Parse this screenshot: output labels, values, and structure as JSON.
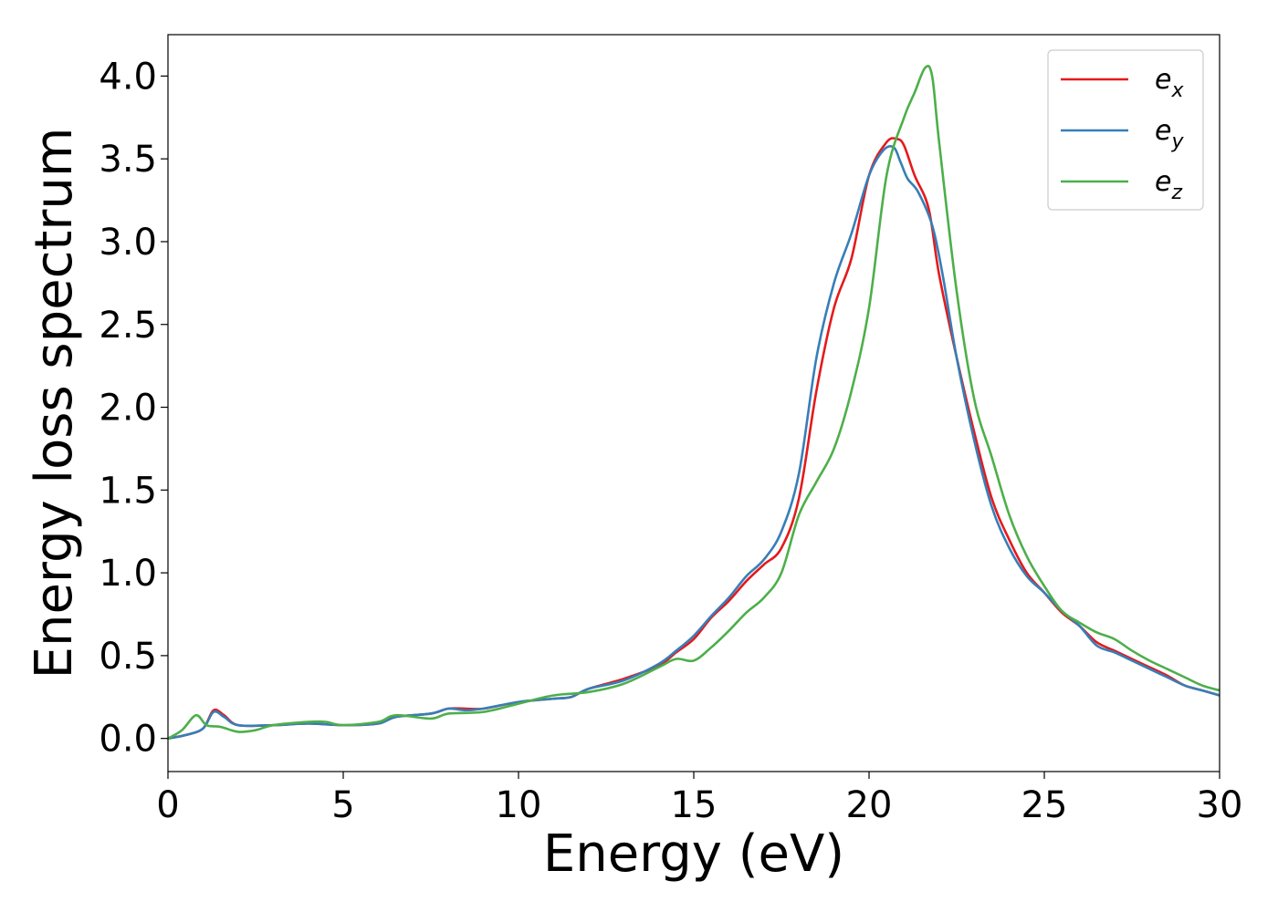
{
  "chart_data": {
    "type": "line",
    "title": "",
    "xlabel": "Energy (eV)",
    "ylabel": "Energy loss spectrum",
    "xlim": [
      0,
      30
    ],
    "ylim": [
      -0.2,
      4.25
    ],
    "xticks": [
      0,
      5,
      10,
      15,
      20,
      25,
      30
    ],
    "yticks": [
      0.0,
      0.5,
      1.0,
      1.5,
      2.0,
      2.5,
      3.0,
      3.5,
      4.0
    ],
    "xtick_labels": [
      "0",
      "5",
      "10",
      "15",
      "20",
      "25",
      "30"
    ],
    "ytick_labels": [
      "0.0",
      "0.5",
      "1.0",
      "1.5",
      "2.0",
      "2.5",
      "3.0",
      "3.5",
      "4.0"
    ],
    "grid": false,
    "legend_position": "top-right",
    "series": [
      {
        "name": "e",
        "subscript": "x",
        "color": "#e41a1c",
        "x": [
          0,
          0.5,
          1.0,
          1.3,
          1.6,
          2.0,
          3,
          4,
          5,
          6,
          6.5,
          7.5,
          8,
          8.5,
          9,
          10,
          11,
          11.5,
          12,
          13,
          14,
          14.5,
          15,
          15.5,
          16,
          16.5,
          17,
          17.5,
          18,
          18.5,
          19,
          19.5,
          20,
          20.5,
          20.8,
          21,
          21.3,
          21.7,
          22,
          22.5,
          23,
          23.5,
          24,
          24.5,
          25,
          25.5,
          26,
          26.5,
          27,
          27.5,
          28,
          28.5,
          29,
          29.5,
          30
        ],
        "y": [
          0.0,
          0.02,
          0.06,
          0.17,
          0.14,
          0.08,
          0.08,
          0.09,
          0.08,
          0.09,
          0.13,
          0.15,
          0.18,
          0.18,
          0.18,
          0.22,
          0.24,
          0.25,
          0.3,
          0.36,
          0.44,
          0.52,
          0.6,
          0.73,
          0.83,
          0.95,
          1.05,
          1.15,
          1.45,
          2.1,
          2.6,
          2.9,
          3.4,
          3.6,
          3.62,
          3.58,
          3.4,
          3.2,
          2.8,
          2.3,
          1.85,
          1.45,
          1.2,
          1.0,
          0.88,
          0.76,
          0.68,
          0.58,
          0.53,
          0.48,
          0.43,
          0.38,
          0.32,
          0.29,
          0.26
        ]
      },
      {
        "name": "e",
        "subscript": "y",
        "color": "#377eb8",
        "x": [
          0,
          0.5,
          1.0,
          1.3,
          1.6,
          2.0,
          3,
          4,
          5,
          6,
          6.5,
          7.5,
          8,
          8.5,
          9,
          10,
          11,
          11.5,
          12,
          13,
          14,
          14.5,
          15,
          15.5,
          16,
          16.5,
          17,
          17.5,
          18,
          18.5,
          19,
          19.5,
          20,
          20.4,
          20.7,
          20.9,
          21.1,
          21.4,
          21.8,
          22.1,
          22.5,
          23,
          23.5,
          24,
          24.5,
          25,
          25.5,
          26,
          26.5,
          27,
          27.5,
          28,
          28.5,
          29,
          29.5,
          30
        ],
        "y": [
          0.0,
          0.02,
          0.06,
          0.16,
          0.13,
          0.08,
          0.08,
          0.09,
          0.08,
          0.09,
          0.13,
          0.15,
          0.18,
          0.17,
          0.18,
          0.22,
          0.24,
          0.25,
          0.3,
          0.35,
          0.45,
          0.53,
          0.62,
          0.74,
          0.85,
          0.98,
          1.08,
          1.25,
          1.6,
          2.3,
          2.75,
          3.05,
          3.4,
          3.55,
          3.57,
          3.48,
          3.38,
          3.3,
          3.1,
          2.8,
          2.3,
          1.8,
          1.4,
          1.15,
          0.98,
          0.88,
          0.77,
          0.68,
          0.56,
          0.52,
          0.47,
          0.42,
          0.37,
          0.32,
          0.29,
          0.26
        ]
      },
      {
        "name": "e",
        "subscript": "z",
        "color": "#4daf4a",
        "x": [
          0,
          0.4,
          0.8,
          1.1,
          1.5,
          2.0,
          2.5,
          3,
          4,
          4.5,
          5,
          6,
          6.5,
          7.5,
          8,
          9,
          10,
          11,
          12,
          13,
          14,
          14.5,
          15,
          15.5,
          16,
          16.5,
          17,
          17.5,
          18,
          18.5,
          19,
          19.5,
          20,
          20.5,
          21,
          21.3,
          21.6,
          21.8,
          22,
          22.5,
          23,
          23.5,
          24,
          24.5,
          25,
          25.5,
          26,
          26.5,
          27,
          27.5,
          28,
          28.5,
          29,
          29.5,
          30
        ],
        "y": [
          0.0,
          0.05,
          0.14,
          0.08,
          0.07,
          0.04,
          0.05,
          0.08,
          0.1,
          0.1,
          0.08,
          0.1,
          0.14,
          0.12,
          0.15,
          0.16,
          0.21,
          0.26,
          0.28,
          0.33,
          0.43,
          0.48,
          0.47,
          0.55,
          0.65,
          0.76,
          0.85,
          1.0,
          1.35,
          1.55,
          1.75,
          2.1,
          2.6,
          3.4,
          3.75,
          3.9,
          4.05,
          4.0,
          3.6,
          2.7,
          2.05,
          1.7,
          1.35,
          1.1,
          0.92,
          0.77,
          0.7,
          0.64,
          0.6,
          0.53,
          0.47,
          0.42,
          0.37,
          0.32,
          0.29
        ]
      }
    ]
  }
}
